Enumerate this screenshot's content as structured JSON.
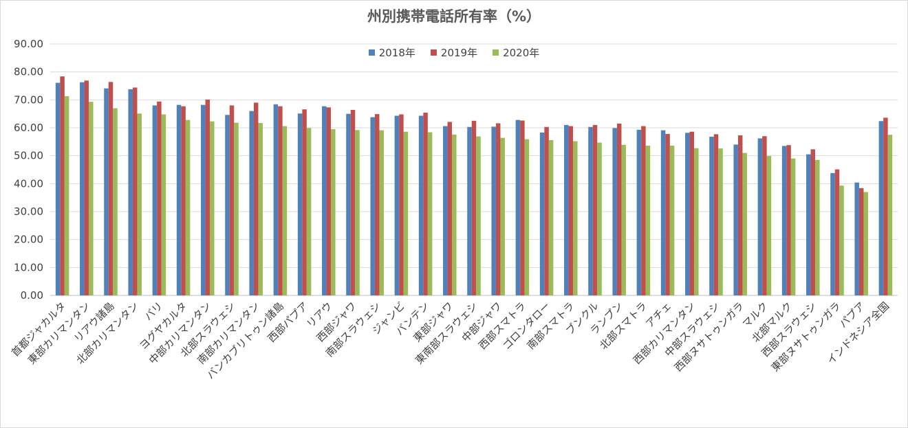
{
  "chart_data": {
    "type": "bar",
    "title": "州別携帯電話所有率（%）",
    "xlabel": "",
    "ylabel": "",
    "ylim": [
      0,
      90
    ],
    "yticks": [
      "0.00",
      "10.00",
      "20.00",
      "30.00",
      "40.00",
      "50.00",
      "60.00",
      "70.00",
      "80.00",
      "90.00"
    ],
    "grid": true,
    "legend_position": "top",
    "categories": [
      "首都ジャカルタ",
      "東部カリマンタン",
      "リアウ諸島",
      "北部カリマンタン",
      "バリ",
      "ヨグヤカルタ",
      "中部カリマンタン",
      "北部スラウェシ",
      "南部カリマンタン",
      "バンカブリトゥン諸島",
      "西部パプア",
      "リアウ",
      "西部ジャワ",
      "南部スラウェシ",
      "ジャンビ",
      "バンテン",
      "東部ジャワ",
      "東南部スラウェシ",
      "中部ジャワ",
      "西部スマトラ",
      "ゴロンタロー",
      "南部スマトラ",
      "ブンクル",
      "ランプン",
      "北部スマトラ",
      "アチェ",
      "西部カリマンタン",
      "中部スラウェシ",
      "西部ヌサトゥンガラ",
      "マルク",
      "北部マルク",
      "西部スラウェシ",
      "東部ヌサトゥンガラ",
      "パプア",
      "インドネシア全国"
    ],
    "series": [
      {
        "name": "2018年",
        "color": "#4f81bd",
        "values": [
          76.1,
          76.3,
          74.1,
          73.8,
          68.0,
          68.2,
          68.2,
          64.6,
          66.0,
          68.4,
          65.1,
          67.7,
          65.0,
          63.8,
          64.3,
          64.3,
          60.6,
          60.3,
          60.4,
          62.8,
          58.3,
          61.0,
          60.3,
          59.9,
          59.3,
          59.1,
          58.2,
          56.8,
          54.0,
          56.2,
          53.5,
          50.5,
          43.8,
          40.4,
          62.4
        ]
      },
      {
        "name": "2019年",
        "color": "#c0504d",
        "values": [
          78.4,
          76.9,
          76.4,
          74.4,
          69.4,
          67.7,
          70.1,
          68.0,
          69.0,
          67.7,
          66.6,
          67.3,
          66.4,
          64.9,
          64.8,
          65.4,
          62.1,
          62.5,
          61.6,
          62.6,
          60.3,
          60.6,
          61.0,
          61.5,
          60.6,
          57.8,
          58.6,
          57.7,
          57.3,
          57.0,
          53.8,
          52.3,
          45.1,
          38.4,
          63.6
        ]
      },
      {
        "name": "2020年",
        "color": "#9bbb59",
        "values": [
          71.3,
          69.3,
          67.0,
          65.1,
          64.8,
          62.8,
          62.3,
          61.8,
          61.7,
          60.6,
          59.9,
          59.5,
          59.2,
          59.1,
          58.6,
          58.4,
          57.6,
          56.9,
          56.4,
          55.9,
          55.6,
          55.2,
          54.7,
          53.9,
          53.6,
          53.6,
          52.7,
          52.6,
          51.0,
          49.9,
          49.0,
          48.5,
          39.3,
          37.0,
          57.5
        ]
      }
    ]
  }
}
